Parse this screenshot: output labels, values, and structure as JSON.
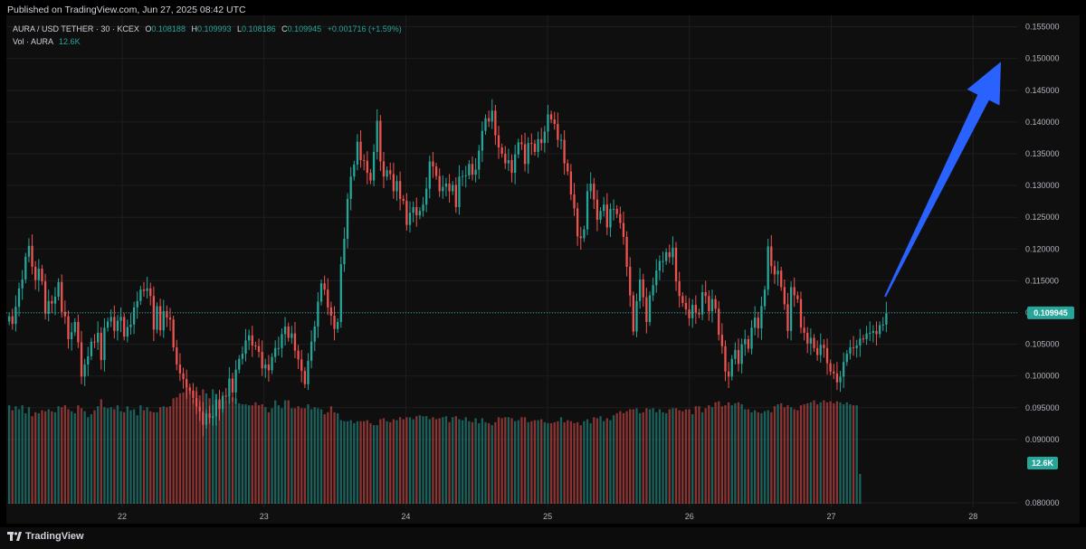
{
  "header": {
    "published": "Published on TradingView.com, Jun 27, 2025 08:42 UTC"
  },
  "legend": {
    "symbol": "AURA / USD TETHER · 30 · KCEX",
    "o_label": "O",
    "o_value": "0.108188",
    "h_label": "H",
    "h_value": "0.109993",
    "l_label": "L",
    "l_value": "0.108186",
    "c_label": "C",
    "c_value": "0.109945",
    "change": "+0.001716 (+1.59%)",
    "vol_label": "Vol · AURA",
    "vol_value": "12.6K"
  },
  "footer": {
    "brand": "TradingView"
  },
  "colors": {
    "up": "#26a69a",
    "down": "#ef5350",
    "background": "#0f0f0f",
    "grid": "#1e1e1e",
    "axis_text": "#b2b5be",
    "arrow": "#2962ff"
  },
  "chart_data": {
    "type": "candlestick",
    "interval": "30",
    "exchange": "KCEX",
    "x_tick_labels": [
      "22",
      "23",
      "24",
      "25",
      "26",
      "27",
      "28"
    ],
    "y_tick_labels": [
      "0.080000",
      "0.090000",
      "0.095000",
      "0.100000",
      "0.105000",
      "0.110000",
      "0.115000",
      "0.120000",
      "0.125000",
      "0.130000",
      "0.135000",
      "0.140000",
      "0.145000",
      "0.150000",
      "0.155000"
    ],
    "ylim": [
      0.0793,
      0.1568
    ],
    "last_price": 0.109945,
    "last_price_label": "0.109945",
    "volume_last_label": "12.6K",
    "annotation": {
      "type": "arrow",
      "direction": "up",
      "from_price": 0.1125,
      "to_price": 0.1495
    },
    "candles_close": [
      0.1094,
      0.1082,
      0.1109,
      0.1138,
      0.1152,
      0.1188,
      0.1205,
      0.1172,
      0.1151,
      0.1169,
      0.1149,
      0.1098,
      0.1118,
      0.1114,
      0.1125,
      0.1148,
      0.1101,
      0.1094,
      0.1058,
      0.1069,
      0.1085,
      0.1053,
      0.0999,
      0.1018,
      0.1031,
      0.1054,
      0.1053,
      0.1068,
      0.1025,
      0.1076,
      0.1086,
      0.1093,
      0.1071,
      0.1087,
      0.1093,
      0.1062,
      0.1077,
      0.1081,
      0.1108,
      0.1118,
      0.1136,
      0.1134,
      0.1138,
      0.1126,
      0.1073,
      0.111,
      0.1072,
      0.1102,
      0.1092,
      0.1089,
      0.1045,
      0.1018,
      0.1004,
      0.0995,
      0.0982,
      0.0977,
      0.0965,
      0.0952,
      0.0944,
      0.0923,
      0.0941,
      0.0934,
      0.0937,
      0.0963,
      0.0948,
      0.0969,
      0.0968,
      0.0996,
      0.0974,
      0.101,
      0.1027,
      0.1035,
      0.1056,
      0.1064,
      0.1048,
      0.1047,
      0.1038,
      0.1012,
      0.1018,
      0.1009,
      0.103,
      0.1044,
      0.1044,
      0.1066,
      0.1078,
      0.106,
      0.1067,
      0.104,
      0.1026,
      0.1008,
      0.0987,
      0.1024,
      0.1054,
      0.1078,
      0.1117,
      0.1146,
      0.1136,
      0.1108,
      0.1095,
      0.1074,
      0.1085,
      0.1176,
      0.1216,
      0.1279,
      0.1314,
      0.1333,
      0.1369,
      0.134,
      0.1339,
      0.132,
      0.1308,
      0.1353,
      0.1402,
      0.1338,
      0.1314,
      0.1324,
      0.1318,
      0.1291,
      0.1307,
      0.1279,
      0.1276,
      0.1238,
      0.1257,
      0.1266,
      0.1253,
      0.126,
      0.127,
      0.1295,
      0.1338,
      0.133,
      0.1315,
      0.1291,
      0.1298,
      0.1303,
      0.1291,
      0.1301,
      0.1266,
      0.1314,
      0.1315,
      0.1316,
      0.1334,
      0.1317,
      0.1325,
      0.1355,
      0.1386,
      0.1406,
      0.1401,
      0.1418,
      0.1379,
      0.136,
      0.135,
      0.1335,
      0.134,
      0.132,
      0.1349,
      0.1368,
      0.1365,
      0.1334,
      0.1367,
      0.1366,
      0.1353,
      0.1373,
      0.1367,
      0.1385,
      0.1412,
      0.1404,
      0.1397,
      0.1372,
      0.1372,
      0.1335,
      0.1322,
      0.1286,
      0.1264,
      0.122,
      0.1217,
      0.1231,
      0.1291,
      0.1303,
      0.1278,
      0.1246,
      0.126,
      0.127,
      0.1234,
      0.1263,
      0.1263,
      0.1255,
      0.1241,
      0.1219,
      0.1172,
      0.1127,
      0.107,
      0.1118,
      0.1152,
      0.1124,
      0.1085,
      0.1127,
      0.1143,
      0.1166,
      0.1181,
      0.1181,
      0.1195,
      0.1187,
      0.1202,
      0.1149,
      0.1126,
      0.1115,
      0.1105,
      0.1091,
      0.1112,
      0.11,
      0.1097,
      0.1132,
      0.1126,
      0.1102,
      0.1121,
      0.1106,
      0.1065,
      0.1047,
      0.1007,
      0.0999,
      0.1027,
      0.1041,
      0.1019,
      0.105,
      0.1058,
      0.1043,
      0.1076,
      0.1092,
      0.1075,
      0.111,
      0.1136,
      0.1204,
      0.1173,
      0.116,
      0.1166,
      0.114,
      0.1113,
      0.1071,
      0.114,
      0.1127,
      0.1121,
      0.1076,
      0.1068,
      0.1051,
      0.106,
      0.1044,
      0.1033,
      0.1049,
      0.1044,
      0.102,
      0.1007,
      0.1004,
      0.099,
      0.0999,
      0.1022,
      0.1035,
      0.1045,
      0.1044,
      0.1048,
      0.1059,
      0.1058,
      0.1067,
      0.1068,
      0.1071,
      0.1066,
      0.108,
      0.1081,
      0.1099
    ],
    "volume_relative": [
      0.99,
      0.94,
      0.98,
      0.95,
      0.99,
      0.91,
      0.97,
      0.88,
      0.92,
      0.91,
      0.94,
      0.93,
      0.95,
      0.93,
      0.92,
      0.98,
      0.97,
      0.99,
      0.95,
      0.93,
      0.91,
      0.99,
      0.96,
      0.93,
      0.87,
      0.9,
      0.94,
      0.98,
      1.05,
      0.97,
      0.96,
      0.97,
      0.95,
      0.99,
      0.93,
      0.92,
      0.98,
      0.94,
      0.95,
      0.89,
      0.99,
      0.94,
      0.97,
      0.93,
      0.92,
      0.92,
      0.97,
      0.98,
      0.97,
      0.98,
      1.06,
      1.07,
      1.11,
      1.12,
      1.17,
      1.16,
      1.05,
      1.13,
      1.09,
      1.15,
      1.11,
      1.06,
      1.15,
      1.1,
      1.03,
      1.06,
      1.03,
      1.08,
      1.07,
      1.06,
      1.01,
      1.0,
      1.0,
      0.99,
      0.99,
      1.02,
      0.99,
      1.0,
      0.97,
      0.92,
      0.96,
      1.04,
      0.99,
      0.96,
      1.04,
      1.04,
      0.96,
      0.96,
      0.98,
      0.96,
      0.96,
      1.0,
      0.95,
      0.97,
      0.96,
      0.95,
      0.9,
      0.92,
      0.98,
      0.92,
      0.91,
      0.84,
      0.83,
      0.83,
      0.84,
      0.81,
      0.83,
      0.83,
      0.83,
      0.84,
      0.81,
      0.79,
      0.79,
      0.85,
      0.86,
      0.83,
      0.82,
      0.85,
      0.84,
      0.87,
      0.85,
      0.87,
      0.87,
      0.85,
      0.88,
      0.89,
      0.88,
      0.88,
      0.85,
      0.87,
      0.85,
      0.86,
      0.87,
      0.88,
      0.82,
      0.87,
      0.88,
      0.85,
      0.84,
      0.87,
      0.83,
      0.82,
      0.86,
      0.81,
      0.86,
      0.82,
      0.81,
      0.79,
      0.82,
      0.87,
      0.86,
      0.87,
      0.87,
      0.86,
      0.83,
      0.84,
      0.87,
      0.87,
      0.82,
      0.83,
      0.84,
      0.84,
      0.85,
      0.82,
      0.81,
      0.81,
      0.82,
      0.83,
      0.87,
      0.82,
      0.84,
      0.83,
      0.81,
      0.82,
      0.79,
      0.83,
      0.85,
      0.81,
      0.87,
      0.86,
      0.88,
      0.83,
      0.86,
      0.84,
      0.89,
      0.91,
      0.93,
      0.91,
      0.93,
      0.95,
      0.95,
      0.96,
      0.91,
      0.92,
      0.96,
      0.95,
      0.96,
      0.92,
      0.95,
      0.92,
      0.91,
      0.95,
      0.96,
      0.96,
      0.94,
      0.93,
      0.95,
      0.95,
      0.9,
      0.98,
      0.98,
      0.92,
      0.96,
      0.99,
      0.97,
      1.02,
      1.03,
      0.98,
      0.99,
      1.02,
      0.99,
      1.01,
      1.02,
      1.0,
      0.95,
      0.95,
      0.92,
      0.94,
      0.92,
      0.91,
      0.93,
      0.94,
      0.92,
      0.98,
      1.0,
      1.01,
      0.97,
      0.99,
      0.97,
      0.95,
      0.94,
      0.99,
      1.0,
      1.01,
      1.02,
      1.04,
      1.0,
      1.02,
      1.04,
      1.02,
      1.03,
      1.01,
      1.03,
      1.02,
      1.0,
      1.02,
      1.0,
      0.99,
      0.99,
      0.3
    ]
  }
}
